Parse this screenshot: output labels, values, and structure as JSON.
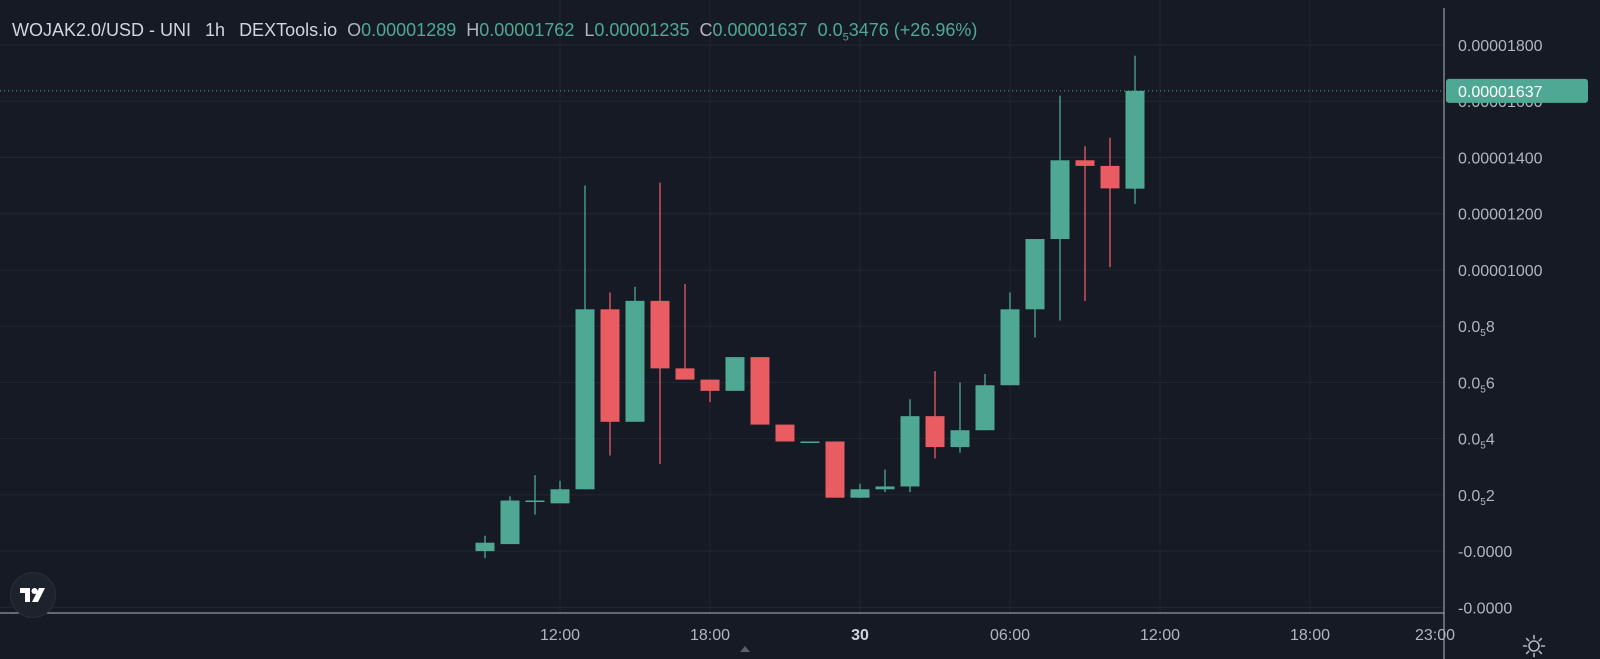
{
  "legend": {
    "symbol": "WOJAK2.0/USD",
    "exchange": "UNI",
    "interval": "1h",
    "source": "DEXTools.io",
    "o_label": "O",
    "o_value": "0.00001289",
    "h_label": "H",
    "h_value": "0.00001762",
    "l_label": "L",
    "l_value": "0.00001235",
    "c_label": "C",
    "c_value": "0.00001637",
    "change": "0.0",
    "change_sub": "5",
    "change_rest": "3476",
    "change_pct": "(+26.96%)"
  },
  "colors": {
    "background": "#161a25",
    "up": "#4fa893",
    "down": "#e85c62",
    "grid": "#232733",
    "text": "#b2b5be",
    "price_tag": "#4fa893"
  },
  "last_price_label": "0.00001637",
  "chart_data": {
    "type": "candlestick",
    "y_axis_labels": [
      {
        "value": 1.8e-05,
        "label": "0.00001800"
      },
      {
        "value": 1.6e-05,
        "label": "0.00001600"
      },
      {
        "value": 1.4e-05,
        "label": "0.00001400"
      },
      {
        "value": 1.2e-05,
        "label": "0.00001200"
      },
      {
        "value": 1e-05,
        "label": "0.00001000"
      },
      {
        "value": 8e-06,
        "label": "0.0",
        "sub": "5",
        "rest": "8"
      },
      {
        "value": 6e-06,
        "label": "0.0",
        "sub": "5",
        "rest": "6"
      },
      {
        "value": 4e-06,
        "label": "0.0",
        "sub": "5",
        "rest": "4"
      },
      {
        "value": 2e-06,
        "label": "0.0",
        "sub": "5",
        "rest": "2"
      },
      {
        "value": 0.0,
        "label": "-0.0000"
      },
      {
        "value": -2e-06,
        "label": "-0.0000"
      }
    ],
    "x_axis_labels": [
      {
        "hour": 12,
        "label": "12:00"
      },
      {
        "hour": 18,
        "label": "18:00"
      },
      {
        "hour": 24,
        "label": "30"
      },
      {
        "hour": 30,
        "label": "06:00"
      },
      {
        "hour": 36,
        "label": "12:00"
      },
      {
        "hour": 42,
        "label": "18:00"
      },
      {
        "hour": 47,
        "label": "23:00"
      }
    ],
    "ylim": [
      -2.2e-06,
      1.96e-05
    ],
    "candles": [
      {
        "hour": 9,
        "o": 0.0,
        "h": 5.5e-07,
        "l": -2.5e-07,
        "c": 3e-07
      },
      {
        "hour": 10,
        "o": 2.5e-07,
        "h": 1.95e-06,
        "l": 2.5e-07,
        "c": 1.8e-06
      },
      {
        "hour": 11,
        "o": 1.8e-06,
        "h": 2.7e-06,
        "l": 1.3e-06,
        "c": 1.8e-06
      },
      {
        "hour": 12,
        "o": 1.7e-06,
        "h": 2.5e-06,
        "l": 1.7e-06,
        "c": 2.2e-06
      },
      {
        "hour": 13,
        "o": 2.2e-06,
        "h": 1.3e-05,
        "l": 2.2e-06,
        "c": 8.6e-06
      },
      {
        "hour": 14,
        "o": 8.6e-06,
        "h": 9.2e-06,
        "l": 3.4e-06,
        "c": 4.6e-06
      },
      {
        "hour": 15,
        "o": 4.6e-06,
        "h": 9.4e-06,
        "l": 4.6e-06,
        "c": 8.9e-06
      },
      {
        "hour": 16,
        "o": 8.9e-06,
        "h": 1.31e-05,
        "l": 3.1e-06,
        "c": 6.5e-06
      },
      {
        "hour": 17,
        "o": 6.5e-06,
        "h": 9.5e-06,
        "l": 6.1e-06,
        "c": 6.1e-06
      },
      {
        "hour": 18,
        "o": 6.1e-06,
        "h": 6.1e-06,
        "l": 5.3e-06,
        "c": 5.7e-06
      },
      {
        "hour": 19,
        "o": 5.7e-06,
        "h": 6.9e-06,
        "l": 5.7e-06,
        "c": 6.9e-06
      },
      {
        "hour": 20,
        "o": 6.9e-06,
        "h": 6.9e-06,
        "l": 4.5e-06,
        "c": 4.5e-06
      },
      {
        "hour": 21,
        "o": 4.5e-06,
        "h": 4.5e-06,
        "l": 3.9e-06,
        "c": 3.9e-06
      },
      {
        "hour": 22,
        "o": 3.9e-06,
        "h": 3.9e-06,
        "l": 3.9e-06,
        "c": 3.9e-06
      },
      {
        "hour": 23,
        "o": 3.9e-06,
        "h": 3.9e-06,
        "l": 1.9e-06,
        "c": 1.9e-06
      },
      {
        "hour": 24,
        "o": 1.9e-06,
        "h": 2.4e-06,
        "l": 1.9e-06,
        "c": 2.2e-06
      },
      {
        "hour": 25,
        "o": 2.2e-06,
        "h": 2.9e-06,
        "l": 2.1e-06,
        "c": 2.3e-06
      },
      {
        "hour": 26,
        "o": 2.3e-06,
        "h": 5.4e-06,
        "l": 2.1e-06,
        "c": 4.8e-06
      },
      {
        "hour": 27,
        "o": 4.8e-06,
        "h": 6.4e-06,
        "l": 3.3e-06,
        "c": 3.7e-06
      },
      {
        "hour": 28,
        "o": 3.7e-06,
        "h": 6e-06,
        "l": 3.5e-06,
        "c": 4.3e-06
      },
      {
        "hour": 29,
        "o": 4.3e-06,
        "h": 6.3e-06,
        "l": 4.3e-06,
        "c": 5.9e-06
      },
      {
        "hour": 30,
        "o": 5.9e-06,
        "h": 9.2e-06,
        "l": 5.9e-06,
        "c": 8.6e-06
      },
      {
        "hour": 31,
        "o": 8.6e-06,
        "h": 1.11e-05,
        "l": 7.6e-06,
        "c": 1.11e-05
      },
      {
        "hour": 32,
        "o": 1.11e-05,
        "h": 1.62e-05,
        "l": 8.2e-06,
        "c": 1.39e-05
      },
      {
        "hour": 33,
        "o": 1.39e-05,
        "h": 1.44e-05,
        "l": 8.9e-06,
        "c": 1.37e-05
      },
      {
        "hour": 34,
        "o": 1.37e-05,
        "h": 1.47e-05,
        "l": 1.01e-05,
        "c": 1.29e-05
      },
      {
        "hour": 35,
        "o": 1.289e-05,
        "h": 1.762e-05,
        "l": 1.235e-05,
        "c": 1.637e-05
      }
    ]
  }
}
